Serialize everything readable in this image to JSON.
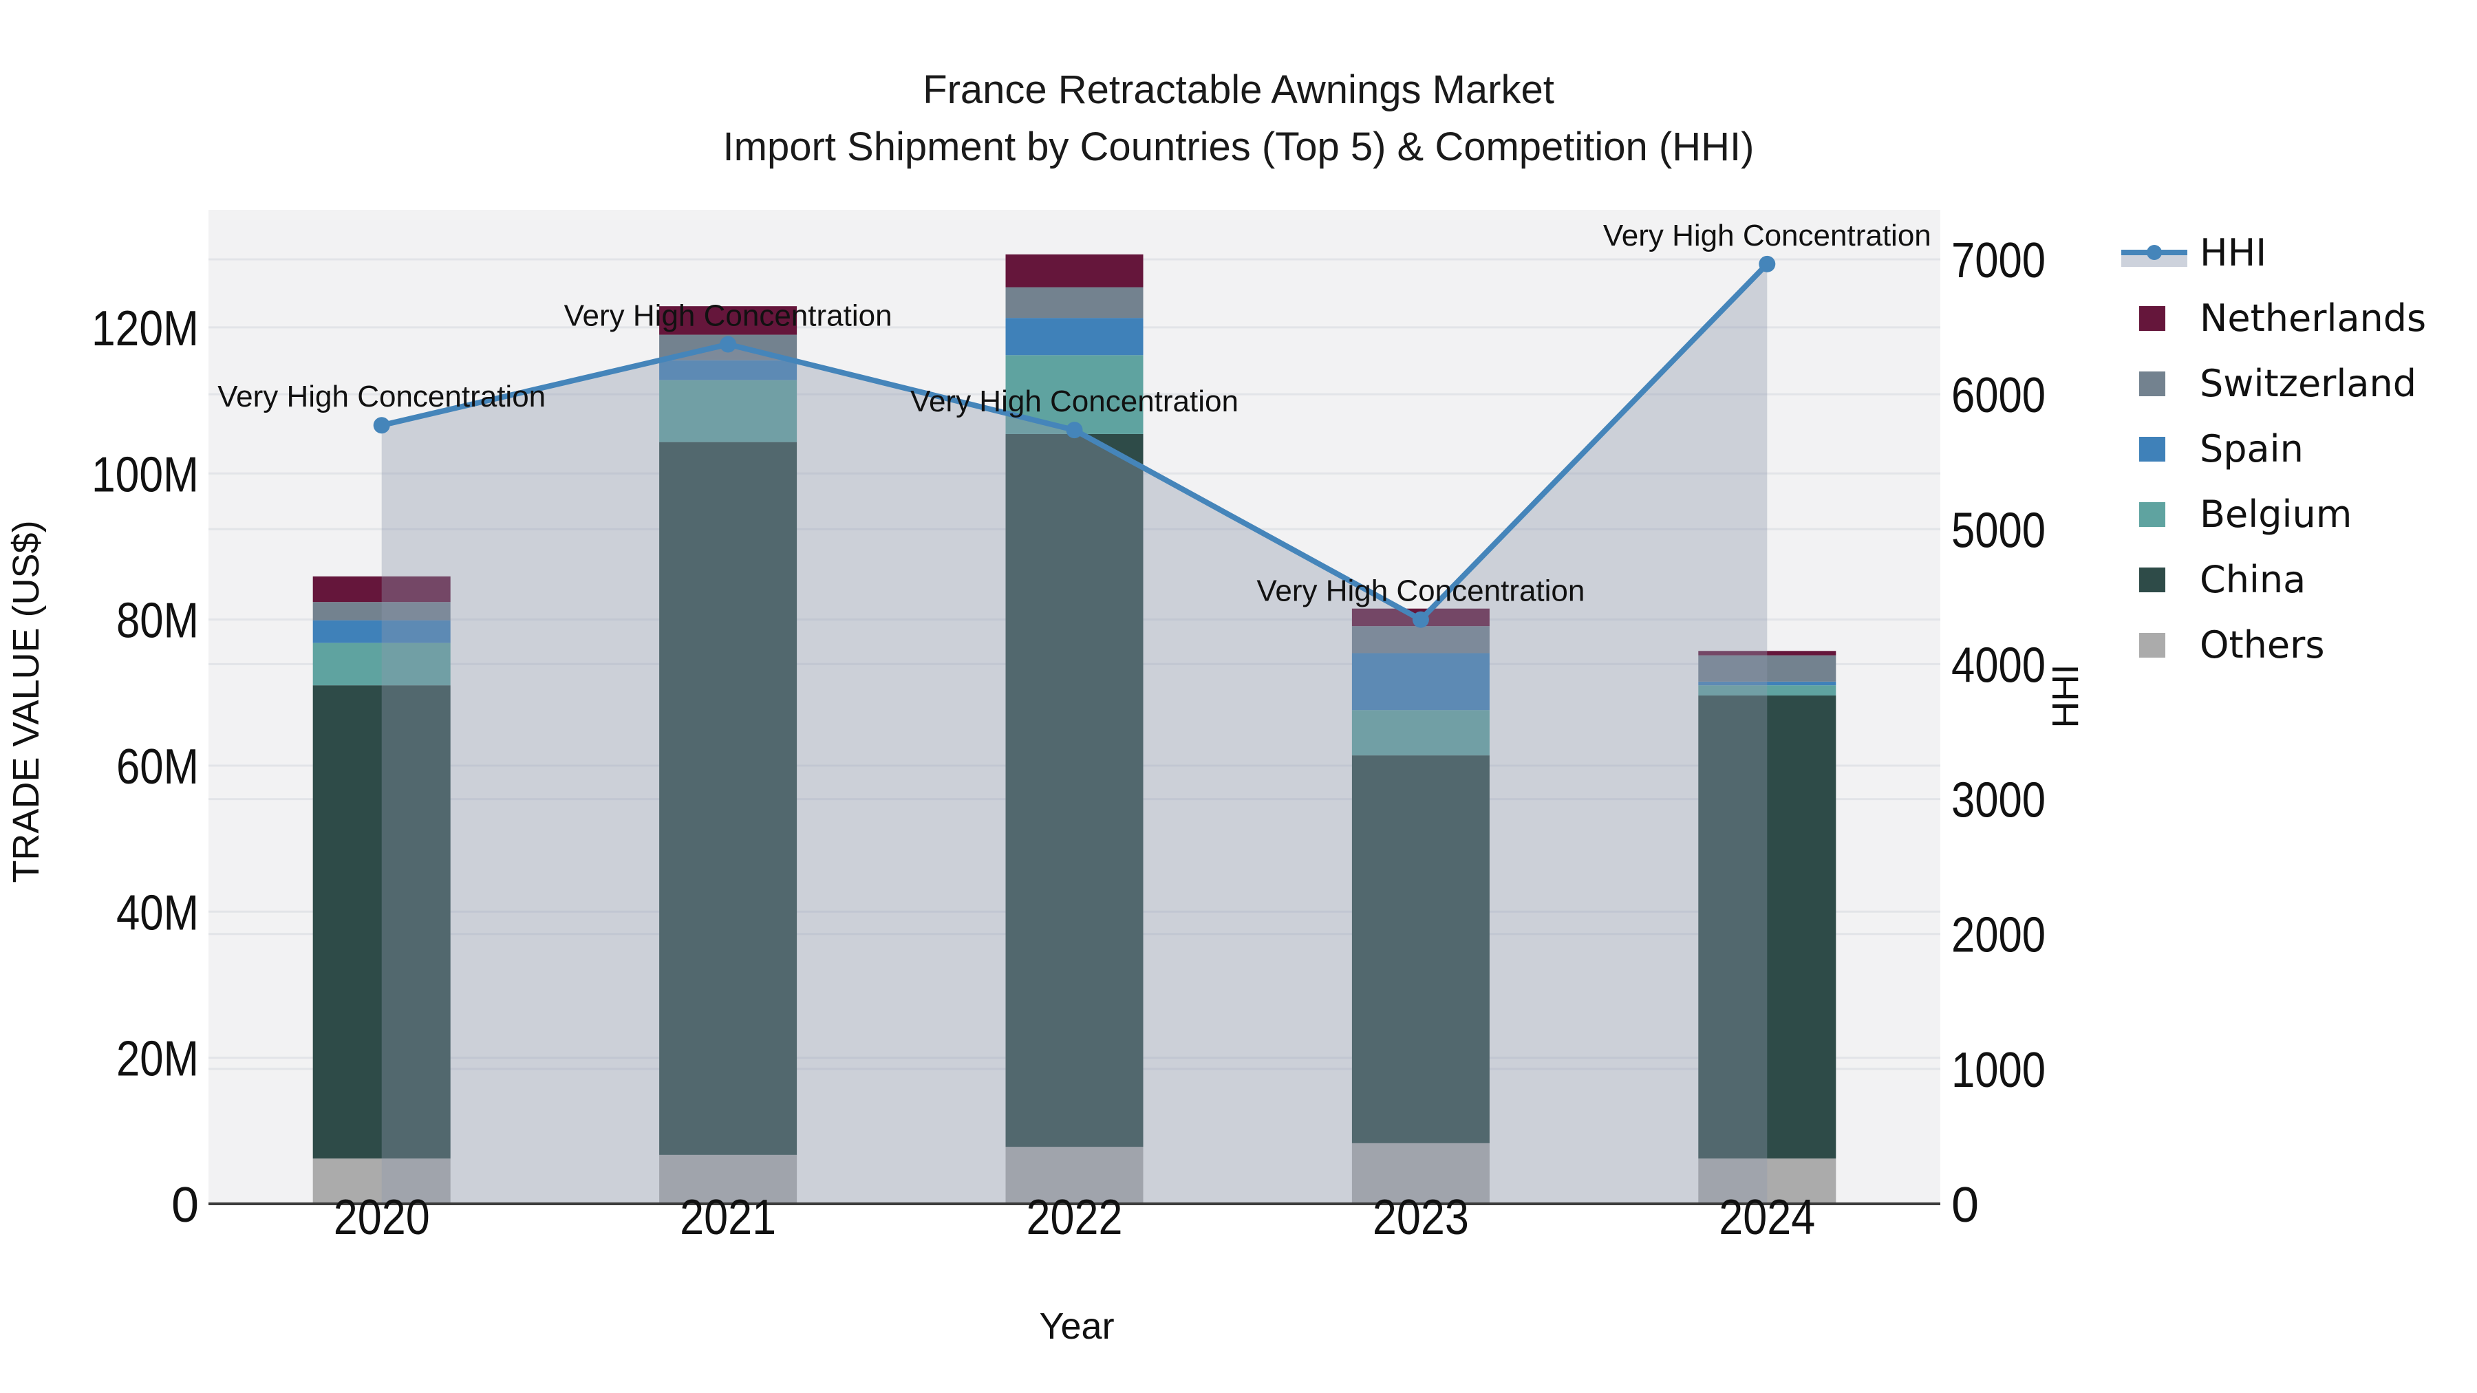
{
  "title": {
    "line1": "France Retractable Awnings Market",
    "line2": "Import Shipment by Countries (Top 5) & Competition (HHI)"
  },
  "chart_data": {
    "type": "combo: stacked-bar (trade value by country) + line-with-area on secondary axis (HHI)",
    "categories": [
      "2020",
      "2021",
      "2022",
      "2023",
      "2024"
    ],
    "x_axis_label": "Year",
    "y1": {
      "label": "TRADE VALUE (US$)",
      "unit": "million US$",
      "ticks": [
        "0",
        "20M",
        "40M",
        "60M",
        "80M",
        "100M",
        "120M"
      ],
      "tick_values_m": [
        0,
        20,
        40,
        60,
        80,
        100,
        120
      ],
      "axis_max_m": 136.1
    },
    "y2": {
      "label": "HHI",
      "ticks": [
        "0",
        "1000",
        "2000",
        "3000",
        "4000",
        "5000",
        "6000",
        "7000"
      ],
      "tick_values": [
        0,
        1000,
        2000,
        3000,
        4000,
        5000,
        6000,
        7000
      ],
      "axis_max": 7367
    },
    "stack_order_bottom_to_top": [
      "Others",
      "China",
      "Belgium",
      "Spain",
      "Switzerland",
      "Netherlands"
    ],
    "series": [
      {
        "name": "Others",
        "values_m": [
          6.2,
          6.7,
          7.8,
          8.3,
          6.2
        ]
      },
      {
        "name": "China",
        "values_m": [
          64.8,
          97.6,
          97.6,
          53.1,
          63.4
        ]
      },
      {
        "name": "Belgium",
        "values_m": [
          5.8,
          8.5,
          10.8,
          6.2,
          1.4
        ]
      },
      {
        "name": "Spain",
        "values_m": [
          3.1,
          2.7,
          5.1,
          7.8,
          0.5
        ]
      },
      {
        "name": "Switzerland",
        "values_m": [
          2.5,
          3.5,
          4.2,
          3.7,
          3.6
        ]
      },
      {
        "name": "Netherlands",
        "values_m": [
          3.5,
          3.9,
          4.5,
          2.4,
          0.6
        ]
      }
    ],
    "totals_m": [
      85.9,
      122.9,
      130.0,
      81.5,
      75.7
    ],
    "hhi": {
      "name": "HHI",
      "values": [
        5770,
        6370,
        5735,
        4330,
        6965
      ],
      "style": "line+markers+area-fill-to-zero"
    },
    "annotations": [
      {
        "x": "2020",
        "text": "Very High Concentration"
      },
      {
        "x": "2021",
        "text": "Very High Concentration"
      },
      {
        "x": "2022",
        "text": "Very High Concentration"
      },
      {
        "x": "2023",
        "text": "Very High Concentration"
      },
      {
        "x": "2024",
        "text": "Very High Concentration"
      }
    ],
    "legend_position": "right",
    "grid": "horizontal gridlines for both y axes"
  },
  "legend": {
    "items": [
      {
        "label": "HHI",
        "type": "line-marker-area"
      },
      {
        "label": "Netherlands",
        "type": "swatch"
      },
      {
        "label": "Switzerland",
        "type": "swatch"
      },
      {
        "label": "Spain",
        "type": "swatch"
      },
      {
        "label": "Belgium",
        "type": "swatch"
      },
      {
        "label": "China",
        "type": "swatch"
      },
      {
        "label": "Others",
        "type": "swatch"
      }
    ]
  },
  "colors": {
    "hhi_line": "#4585BA",
    "area_fill": "rgba(141,153,173,0.38)",
    "Netherlands": "#65163B",
    "Switzerland": "#73828F",
    "Spain": "#3F81B9",
    "Belgium": "#5FA3A0",
    "China": "#2E4B48",
    "Others": "#ABABAB",
    "plot_bg": "#F2F2F3",
    "grid": "#E2E4E8",
    "axis_line": "#3C3C3C",
    "text": "#111111"
  }
}
